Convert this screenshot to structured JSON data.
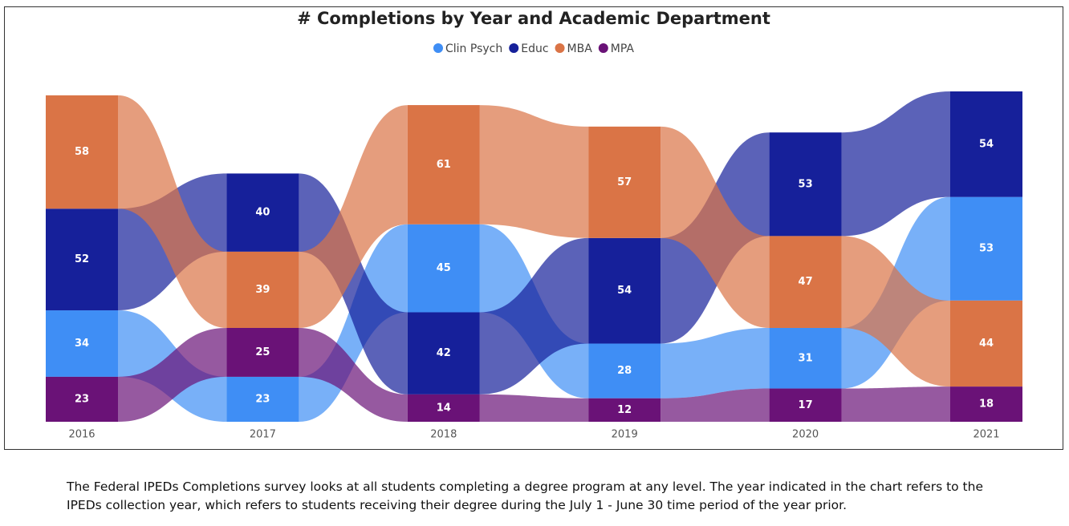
{
  "chart_data": {
    "type": "ribbon",
    "title": "# Completions by Year and Academic Department",
    "categories": [
      "2016",
      "2017",
      "2018",
      "2019",
      "2020",
      "2021"
    ],
    "series": [
      {
        "name": "Clin Psych",
        "color": "#3f8ef5",
        "values": [
          34,
          23,
          45,
          28,
          31,
          53
        ]
      },
      {
        "name": "Educ",
        "color": "#16209a",
        "values": [
          52,
          40,
          42,
          54,
          53,
          54
        ]
      },
      {
        "name": "MBA",
        "color": "#da7446",
        "values": [
          58,
          39,
          61,
          57,
          47,
          44
        ]
      },
      {
        "name": "MPA",
        "color": "#6a1277",
        "values": [
          23,
          25,
          14,
          12,
          17,
          18
        ]
      }
    ],
    "footnote": "The Federal IPEDs Completions survey looks at all students completing a degree program at any level.  The year indicated in the chart refers to the IPEDs collection year, which refers to students receiving their degree during the July 1 - June 30 time period of the year prior."
  }
}
